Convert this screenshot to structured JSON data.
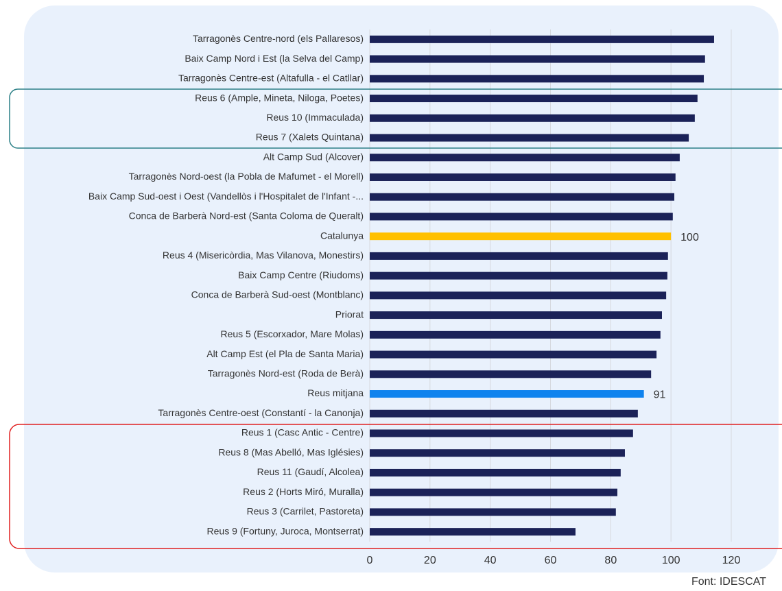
{
  "chart_data": {
    "type": "bar",
    "orientation": "horizontal",
    "source": "Font: IDESCAT",
    "categories": [
      "Tarragonès Centre-nord (els Pallaresos)",
      "Baix Camp Nord i Est (la Selva del Camp)",
      "Tarragonès Centre-est (Altafulla - el Catllar)",
      "Reus 6 (Ample, Mineta, Niloga, Poetes)",
      "Reus 10 (Immaculada)",
      "Reus 7 (Xalets Quintana)",
      "Alt Camp Sud (Alcover)",
      "Tarragonès Nord-oest (la Pobla de Mafumet - el Morell)",
      "Baix Camp Sud-oest i Oest (Vandellòs i l'Hospitalet de l'Infant -...",
      "Conca de Barberà Nord-est (Santa Coloma de Queralt)",
      "Catalunya",
      "Reus 4 (Misericòrdia, Mas Vilanova, Monestirs)",
      "Baix Camp Centre (Riudoms)",
      "Conca de Barberà Sud-oest (Montblanc)",
      "Priorat",
      "Reus 5 (Escorxador, Mare Molas)",
      "Alt Camp Est (el Pla de Santa Maria)",
      "Tarragonès Nord-est (Roda de Berà)",
      "Reus  mitjana",
      "Tarragonès Centre-oest (Constantí - la Canonja)",
      "Reus 1 (Casc Antic - Centre)",
      "Reus 8 (Mas Abelló, Mas Iglésies)",
      "Reus 11 (Gaudí, Alcolea)",
      "Reus 2 (Horts Miró, Muralla)",
      "Reus 3 (Carrilet, Pastoreta)",
      "Reus 9 (Fortuny, Juroca, Montserrat)"
    ],
    "values": [
      114.3,
      111.3,
      110.9,
      108.8,
      107.9,
      105.9,
      102.9,
      101.5,
      101.1,
      100.6,
      100,
      99.0,
      98.8,
      98.4,
      97.0,
      96.5,
      95.2,
      93.4,
      91,
      89.0,
      87.4,
      84.7,
      83.3,
      82.2,
      81.7,
      68.3
    ],
    "value_labels": [
      null,
      null,
      null,
      null,
      null,
      null,
      null,
      null,
      null,
      null,
      "100",
      null,
      null,
      null,
      null,
      null,
      null,
      null,
      "91",
      null,
      null,
      null,
      null,
      null,
      null,
      null
    ],
    "colors": [
      "#1b2258",
      "#1b2258",
      "#1b2258",
      "#1b2258",
      "#1b2258",
      "#1b2258",
      "#1b2258",
      "#1b2258",
      "#1b2258",
      "#1b2258",
      "#ffc000",
      "#1b2258",
      "#1b2258",
      "#1b2258",
      "#1b2258",
      "#1b2258",
      "#1b2258",
      "#1b2258",
      "#0f83ee",
      "#1b2258",
      "#1b2258",
      "#1b2258",
      "#1b2258",
      "#1b2258",
      "#1b2258",
      "#1b2258"
    ],
    "xlim": [
      0,
      120
    ],
    "xticks": [
      0,
      20,
      40,
      60,
      80,
      100,
      120
    ],
    "grid": true
  }
}
